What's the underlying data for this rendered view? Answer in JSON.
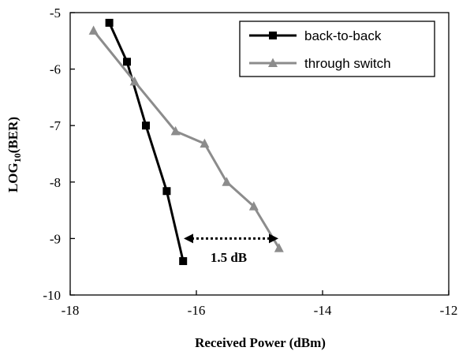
{
  "chart_data": {
    "type": "line",
    "xlabel": "Received Power (dBm)",
    "ylabel_main": "LOG",
    "ylabel_sub": "10",
    "ylabel_tail": "(BER)",
    "xlim": [
      -18,
      -12
    ],
    "ylim": [
      -10,
      -5
    ],
    "xticks": [
      -18,
      -16,
      -14,
      -12
    ],
    "yticks": [
      -5,
      -6,
      -7,
      -8,
      -9,
      -10
    ],
    "xtick_labels": [
      "-18",
      "-16",
      "-14",
      "-12"
    ],
    "ytick_labels": [
      "-5",
      "-6",
      "-7",
      "-8",
      "-9",
      "-10"
    ],
    "grid": false,
    "legend_position": "top-right",
    "series": [
      {
        "name": "back-to-back",
        "color": "#000000",
        "marker": "square",
        "x": [
          -17.38,
          -17.1,
          -16.8,
          -16.47,
          -16.21
        ],
        "y": [
          -5.18,
          -5.87,
          -7.0,
          -8.16,
          -9.4
        ]
      },
      {
        "name": "through switch",
        "color": "#8c8c8c",
        "marker": "triangle",
        "x": [
          -17.63,
          -16.98,
          -16.33,
          -15.87,
          -15.52,
          -15.09,
          -14.69
        ],
        "y": [
          -5.32,
          -6.22,
          -7.1,
          -7.32,
          -8.0,
          -8.43,
          -9.17
        ]
      }
    ],
    "annotation": {
      "text": "1.5 dB",
      "x_start": -16.2,
      "x_end": -14.7,
      "y": -9.0
    }
  }
}
